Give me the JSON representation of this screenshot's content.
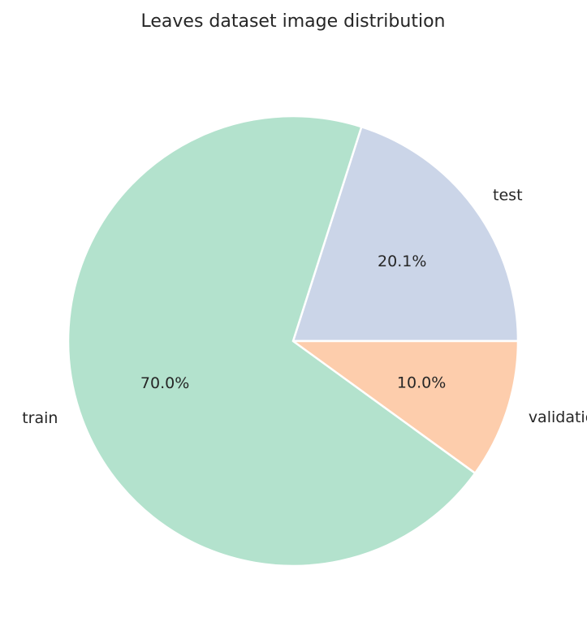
{
  "chart_data": {
    "type": "pie",
    "title": "Leaves dataset image distribution",
    "start_angle_deg": 0,
    "direction": "counterclockwise",
    "slices": [
      {
        "label": "test",
        "value": 20.1,
        "pct_label": "20.1%",
        "color": "#cbd5e8"
      },
      {
        "label": "train",
        "value": 70.0,
        "pct_label": "70.0%",
        "color": "#b3e2cd"
      },
      {
        "label": "validation",
        "value": 10.0,
        "pct_label": "10.0%",
        "color": "#fdcdac"
      }
    ]
  }
}
